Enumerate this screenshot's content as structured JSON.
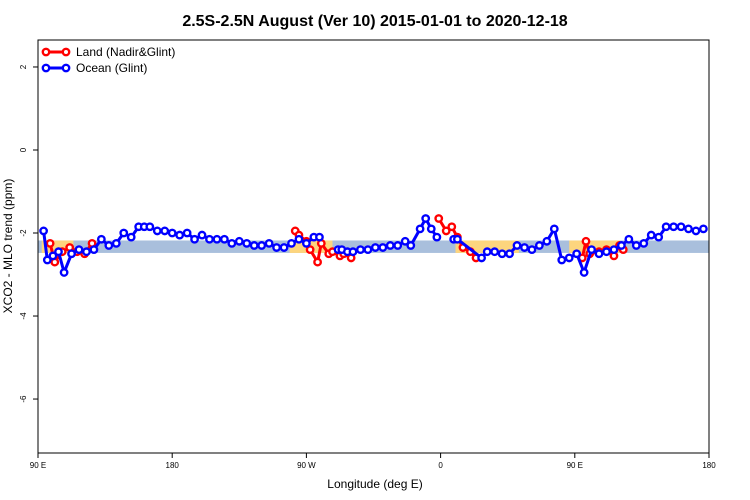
{
  "chart_data": {
    "type": "line",
    "title": "2.5S-2.5N August (Ver 10)   2015-01-01 to 2020-12-18",
    "xlabel": "Longitude (deg E)",
    "ylabel": "XCO2 - MLO trend (ppm)",
    "xlim": [
      90,
      450
    ],
    "ylim": [
      -7.3,
      2.65
    ],
    "x_ticks": [
      {
        "value": 90,
        "label": "90 E"
      },
      {
        "value": 162,
        "label": "180"
      },
      {
        "value": 234,
        "label": "90 W"
      },
      {
        "value": 306,
        "label": "0"
      },
      {
        "value": 378,
        "label": "90 E"
      },
      {
        "value": 450,
        "label": "180"
      }
    ],
    "y_ticks": [
      {
        "value": 2,
        "label": "2"
      },
      {
        "value": 0,
        "label": "0"
      },
      {
        "value": -2,
        "label": "-2"
      },
      {
        "value": -4,
        "label": "-4"
      },
      {
        "value": -6,
        "label": "-6"
      }
    ],
    "grid": false,
    "legend_position": "top-left",
    "band": {
      "y_low": -2.48,
      "y_high": -2.18,
      "color": "#a9bfdc"
    },
    "band_highlights": [
      {
        "x_start": 92,
        "x_end": 109,
        "color": "#fdd57e"
      },
      {
        "x_start": 225,
        "x_end": 248,
        "color": "#fdd57e"
      },
      {
        "x_start": 314,
        "x_end": 348,
        "color": "#fdd57e"
      },
      {
        "x_start": 375,
        "x_end": 402,
        "color": "#fdd57e"
      }
    ],
    "series": [
      {
        "name": "Land (Nadir&Glint)",
        "color": "#ff0000",
        "segments": [
          {
            "x": [
              96.5,
              99,
              103,
              107,
              111,
              115,
              119
            ],
            "y": [
              -2.25,
              -2.7,
              -2.45,
              -2.35,
              -2.45,
              -2.5,
              -2.25
            ]
          },
          {
            "x": [
              228,
              230,
              234,
              236,
              240,
              242,
              246,
              248,
              252,
              254,
              258
            ],
            "y": [
              -1.95,
              -2.05,
              -2.2,
              -2.4,
              -2.7,
              -2.25,
              -2.5,
              -2.45,
              -2.55,
              -2.5,
              -2.6
            ]
          },
          {
            "x": [
              305,
              309,
              312,
              315,
              318,
              322,
              325
            ],
            "y": [
              -1.65,
              -1.95,
              -1.85,
              -2.1,
              -2.35,
              -2.45,
              -2.6
            ]
          },
          {
            "x": [
              382,
              384,
              386,
              391,
              395,
              399,
              402,
              404
            ],
            "y": [
              -2.6,
              -2.2,
              -2.5,
              -2.45,
              -2.4,
              -2.55,
              -2.3,
              -2.4
            ]
          }
        ]
      },
      {
        "name": "Ocean (Glint)",
        "color": "#0000ff",
        "segments": [
          {
            "x": [
              93,
              95,
              98,
              101,
              104,
              108,
              112,
              116,
              120,
              124,
              128,
              132,
              136,
              140,
              144,
              147,
              150,
              154,
              158,
              162,
              166,
              170,
              174,
              178,
              182,
              186,
              190,
              194,
              198,
              202,
              206,
              210,
              214,
              218,
              222,
              226,
              230,
              234,
              238,
              241
            ],
            "y": [
              -1.95,
              -2.65,
              -2.55,
              -2.45,
              -2.95,
              -2.5,
              -2.4,
              -2.45,
              -2.4,
              -2.15,
              -2.3,
              -2.25,
              -2.0,
              -2.1,
              -1.85,
              -1.85,
              -1.85,
              -1.95,
              -1.95,
              -2.0,
              -2.05,
              -2.0,
              -2.15,
              -2.05,
              -2.15,
              -2.15,
              -2.15,
              -2.25,
              -2.2,
              -2.25,
              -2.3,
              -2.3,
              -2.25,
              -2.35,
              -2.35,
              -2.25,
              -2.15,
              -2.25,
              -2.1,
              -2.1
            ]
          },
          {
            "x": [
              251,
              253,
              256,
              259,
              263,
              267,
              271,
              275,
              279,
              283,
              287,
              290,
              295,
              298,
              301,
              304
            ],
            "y": [
              -2.4,
              -2.4,
              -2.45,
              -2.45,
              -2.4,
              -2.4,
              -2.35,
              -2.35,
              -2.3,
              -2.3,
              -2.2,
              -2.3,
              -1.9,
              -1.65,
              -1.9,
              -2.1
            ]
          },
          {
            "x": [
              313,
              315,
              328,
              331,
              335,
              339,
              343,
              347,
              351,
              355,
              359,
              363,
              367,
              371,
              375,
              379,
              383,
              387,
              391,
              395,
              399,
              403,
              407,
              411,
              415,
              419,
              423,
              427,
              431,
              435,
              439,
              443,
              447
            ],
            "y": [
              -2.15,
              -2.15,
              -2.6,
              -2.45,
              -2.45,
              -2.5,
              -2.5,
              -2.3,
              -2.35,
              -2.4,
              -2.3,
              -2.2,
              -1.9,
              -2.65,
              -2.6,
              -2.5,
              -2.95,
              -2.4,
              -2.5,
              -2.45,
              -2.4,
              -2.3,
              -2.15,
              -2.3,
              -2.25,
              -2.05,
              -2.1,
              -1.85,
              -1.85,
              -1.85,
              -1.9,
              -1.95,
              -1.9
            ]
          }
        ]
      }
    ]
  }
}
